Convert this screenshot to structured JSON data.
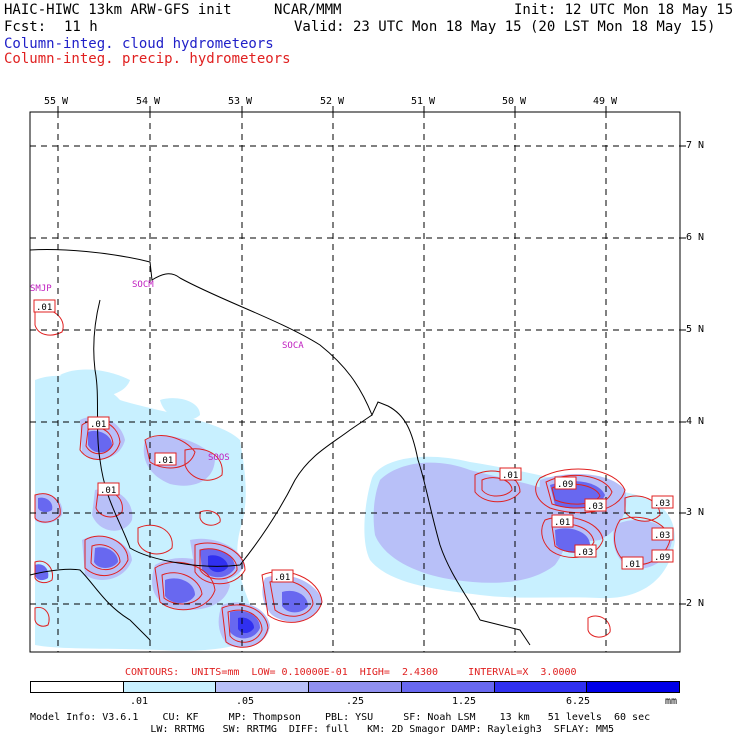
{
  "header": {
    "model": "HAIC-HIWC 13km ARW-GFS init",
    "org": "NCAR/MMM",
    "init": "Init: 12 UTC Mon 18 May 15",
    "fcst_label": "Fcst:",
    "fcst_value": "11 h",
    "valid": "Valid: 23 UTC Mon 18 May 15 (20 LST Mon 18 May 15)",
    "field1": "Column-integ. cloud hydrometeors",
    "field2": "Column-integ. precip. hydrometeors"
  },
  "lon_labels": [
    "55 W",
    "54 W",
    "53 W",
    "52 W",
    "51 W",
    "50 W",
    "49 W"
  ],
  "lat_labels": [
    "7 N",
    "6 N",
    "5 N",
    "4 N",
    "3 N",
    "2 N"
  ],
  "stations": [
    "SMJP",
    "SOCM",
    "SOCA",
    "SOOS"
  ],
  "contour_labels": [
    ".01",
    ".01",
    ".01",
    ".01",
    ".01",
    ".01",
    ".09",
    ".03",
    ".01",
    ".03",
    ".03",
    ".01",
    ".09",
    ".03",
    ".01"
  ],
  "contours_note": "CONTOURS:  UNITS=mm  LOW= 0.10000E-01  HIGH=  2.4300     INTERVAL=X  3.0000",
  "colorbar": {
    "labels": [
      ".01",
      ".05",
      ".25",
      "1.25",
      "6.25"
    ],
    "units": "mm",
    "colors": [
      "#ffffff",
      "#c8f0ff",
      "#b8c0f8",
      "#9090f0",
      "#6868f0",
      "#3030f0",
      "#0000e8"
    ]
  },
  "model_info": {
    "line1": "Model Info: V3.6.1    CU: KF     MP: Thompson    PBL: YSU     SF: Noah LSM    13 km   51 levels  60 sec",
    "line2": "                    LW: RRTMG   SW: RRTMG  DIFF: full   KM: 2D Smagor DAMP: Rayleigh3  SFLAY: MM5"
  }
}
